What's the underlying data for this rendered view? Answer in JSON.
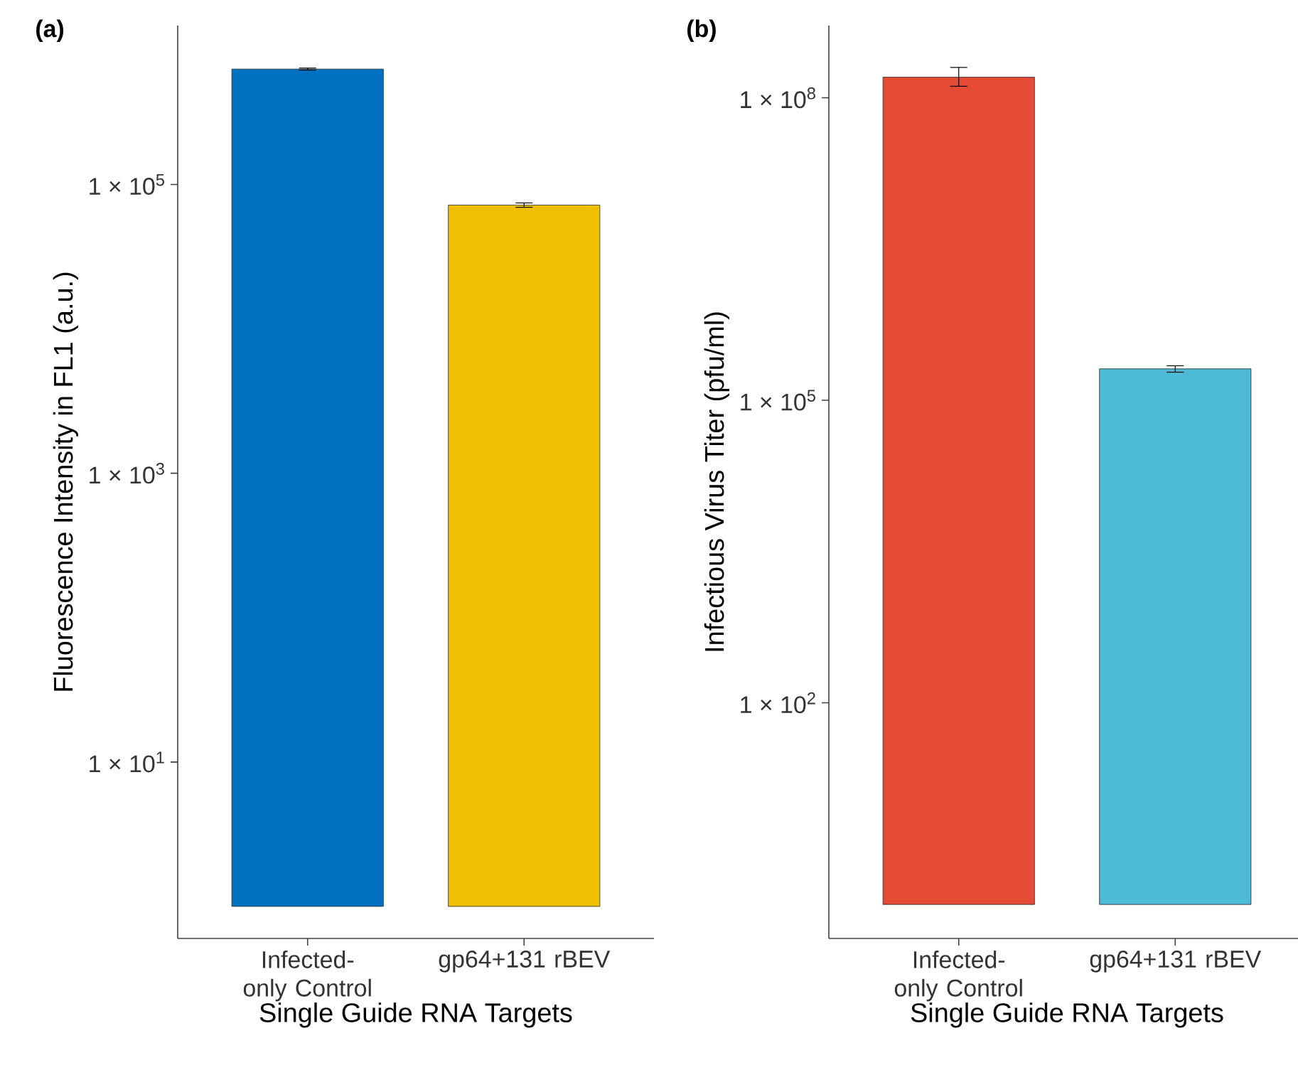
{
  "chart_data": [
    {
      "type": "bar",
      "title": "**(a)**",
      "ylabel": "Fluorescence Intensity in FL1 (a.u.)",
      "xlabel": "Single Guide RNA Targets",
      "categories": [
        "Infected-only Control",
        "gp64+131 rBEV"
      ],
      "values": [
        630000,
        72000
      ],
      "colors": [
        "#0070c0",
        "#efc000"
      ],
      "base": [
        1,
        1
      ],
      "errors": [
        [
          620000,
          640000
        ],
        [
          69500,
          74500
        ]
      ],
      "log": true,
      "ylim": [
        0.6,
        1260000
      ],
      "yticks": [
        {
          "value": 10,
          "label": "1 × 10$^{1}$"
        },
        {
          "value": 1000,
          "label": "1 × 10$^{3}$"
        },
        {
          "value": 100000,
          "label": "1 × 10$^{5}$"
        }
      ],
      "grid": false
    },
    {
      "type": "bar",
      "title": "**(b)**",
      "ylabel": "Infectious Virus Titer (pfu/ml)",
      "xlabel": "Single Guide RNA Targets",
      "categories": [
        "Infected-only Control",
        "gp64+131 rBEV"
      ],
      "values": [
        160000000,
        205000
      ],
      "colors": [
        "#e64b35",
        "#4dbbd5"
      ],
      "base": [
        1,
        1
      ],
      "errors": [
        [
          130000000,
          200000000
        ],
        [
          190000,
          220000
        ]
      ],
      "log": true,
      "ylim": [
        0.46,
        520000000
      ],
      "yticks": [
        {
          "value": 100,
          "label": "1 × 10$^{2}$"
        },
        {
          "value": 100000,
          "label": "1 × 10$^{5}$"
        },
        {
          "value": 100000000,
          "label": "1 × 10$^{8}$"
        }
      ],
      "grid": false
    }
  ]
}
